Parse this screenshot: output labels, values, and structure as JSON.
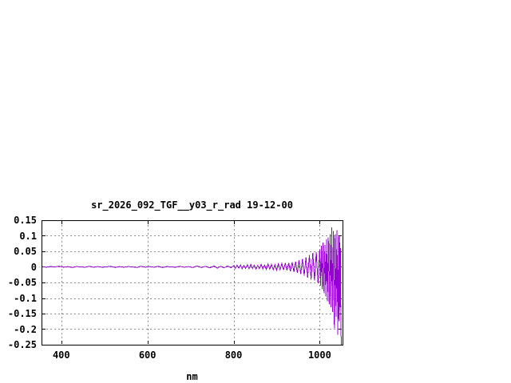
{
  "page": {
    "background": "#ffffff"
  },
  "chart_data": {
    "type": "line",
    "title": "sr_2026_092_TGF__y03_r_rad 19-12-00",
    "xlabel": "nm",
    "ylabel": "",
    "xlim": [
      354,
      1053
    ],
    "ylim": [
      -0.25,
      0.15
    ],
    "grid": true,
    "legend": false,
    "x_ticks": [
      {
        "value": 400,
        "label": "400"
      },
      {
        "value": 600,
        "label": "600"
      },
      {
        "value": 800,
        "label": "800"
      },
      {
        "value": 1000,
        "label": "1000"
      }
    ],
    "y_ticks": [
      {
        "value": 0.15,
        "label": "0.15"
      },
      {
        "value": 0.1,
        "label": "0.1"
      },
      {
        "value": 0.05,
        "label": "0.05"
      },
      {
        "value": 0,
        "label": "0"
      },
      {
        "value": -0.05,
        "label": "-0.05"
      },
      {
        "value": -0.1,
        "label": "-0.1"
      },
      {
        "value": -0.15,
        "label": "-0.15"
      },
      {
        "value": -0.2,
        "label": "-0.2"
      },
      {
        "value": -0.25,
        "label": "-0.25"
      }
    ],
    "colors": {
      "line": "#9400d3",
      "grid": "#8c8c8c",
      "axis": "#000000",
      "text": "#000000"
    },
    "series": [
      {
        "points": [
          [
            355,
            0.001
          ],
          [
            365,
            -0.001
          ],
          [
            375,
            0.001
          ],
          [
            385,
            0
          ],
          [
            395,
            0.002
          ],
          [
            405,
            -0.001
          ],
          [
            415,
            0.001
          ],
          [
            425,
            -0.002
          ],
          [
            435,
            0.001
          ],
          [
            445,
            0
          ],
          [
            455,
            -0.001
          ],
          [
            465,
            0.002
          ],
          [
            475,
            -0.001
          ],
          [
            485,
            0.001
          ],
          [
            495,
            -0.001
          ],
          [
            505,
            0
          ],
          [
            515,
            0.002
          ],
          [
            525,
            -0.002
          ],
          [
            535,
            0.001
          ],
          [
            545,
            -0.001
          ],
          [
            555,
            0.001
          ],
          [
            565,
            0
          ],
          [
            575,
            -0.002
          ],
          [
            585,
            0.002
          ],
          [
            595,
            -0.001
          ],
          [
            605,
            0.001
          ],
          [
            615,
            -0.001
          ],
          [
            625,
            0.002
          ],
          [
            635,
            -0.002
          ],
          [
            645,
            0.001
          ],
          [
            655,
            0
          ],
          [
            665,
            -0.001
          ],
          [
            675,
            0.002
          ],
          [
            685,
            -0.001
          ],
          [
            695,
            0.001
          ],
          [
            705,
            -0.002
          ],
          [
            715,
            0.003
          ],
          [
            725,
            -0.002
          ],
          [
            735,
            0.002
          ],
          [
            745,
            -0.003
          ],
          [
            755,
            0.003
          ],
          [
            762,
            -0.004
          ],
          [
            770,
            0.002
          ],
          [
            778,
            -0.003
          ],
          [
            786,
            0.003
          ],
          [
            794,
            -0.003
          ],
          [
            800,
            0.004
          ],
          [
            804,
            -0.005
          ],
          [
            808,
            0.005
          ],
          [
            812,
            -0.004
          ],
          [
            816,
            0.006
          ],
          [
            820,
            -0.006
          ],
          [
            824,
            0.005
          ],
          [
            828,
            -0.005
          ],
          [
            832,
            0.007
          ],
          [
            836,
            -0.006
          ],
          [
            840,
            0.008
          ],
          [
            844,
            -0.005
          ],
          [
            848,
            0.006
          ],
          [
            852,
            -0.007
          ],
          [
            856,
            0.005
          ],
          [
            860,
            -0.006
          ],
          [
            864,
            0.008
          ],
          [
            868,
            -0.007
          ],
          [
            872,
            0.006
          ],
          [
            876,
            -0.008
          ],
          [
            880,
            0.009
          ],
          [
            884,
            -0.007
          ],
          [
            888,
            0.008
          ],
          [
            892,
            -0.009
          ],
          [
            896,
            0.007
          ],
          [
            900,
            -0.01
          ],
          [
            904,
            0.01
          ],
          [
            908,
            -0.009
          ],
          [
            912,
            0.011
          ],
          [
            916,
            -0.01
          ],
          [
            920,
            0.012
          ],
          [
            924,
            -0.011
          ],
          [
            928,
            0.013
          ],
          [
            932,
            -0.014
          ],
          [
            936,
            0.015
          ],
          [
            940,
            -0.016
          ],
          [
            944,
            0.017
          ],
          [
            948,
            -0.019
          ],
          [
            952,
            0.021
          ],
          [
            956,
            -0.023
          ],
          [
            960,
            0.026
          ],
          [
            964,
            -0.028
          ],
          [
            968,
            0.031
          ],
          [
            972,
            -0.034
          ],
          [
            976,
            0.038
          ],
          [
            980,
            -0.041
          ],
          [
            984,
            0.045
          ],
          [
            988,
            -0.044
          ],
          [
            992,
            0.048
          ],
          [
            996,
            -0.052
          ],
          [
            1000,
            0.055
          ],
          [
            1002,
            -0.06
          ],
          [
            1004,
            0.068
          ],
          [
            1006,
            -0.072
          ],
          [
            1008,
            0.078
          ],
          [
            1010,
            -0.085
          ],
          [
            1012,
            0.07
          ],
          [
            1014,
            -0.095
          ],
          [
            1016,
            0.088
          ],
          [
            1018,
            -0.11
          ],
          [
            1020,
            0.095
          ],
          [
            1022,
            -0.12
          ],
          [
            1024,
            0.105
          ],
          [
            1026,
            -0.13
          ],
          [
            1028,
            0.127
          ],
          [
            1030,
            -0.145
          ],
          [
            1032,
            0.115
          ],
          [
            1034,
            -0.198
          ],
          [
            1036,
            0.105
          ],
          [
            1038,
            -0.16
          ],
          [
            1040,
            0.118
          ],
          [
            1042,
            -0.218
          ],
          [
            1044,
            0.098
          ],
          [
            1045,
            -0.175
          ],
          [
            1046,
            0.1
          ],
          [
            1047,
            -0.13
          ],
          [
            1048,
            0.06
          ],
          [
            1049,
            -0.14
          ],
          [
            1050,
            -0.25
          ]
        ]
      }
    ]
  }
}
